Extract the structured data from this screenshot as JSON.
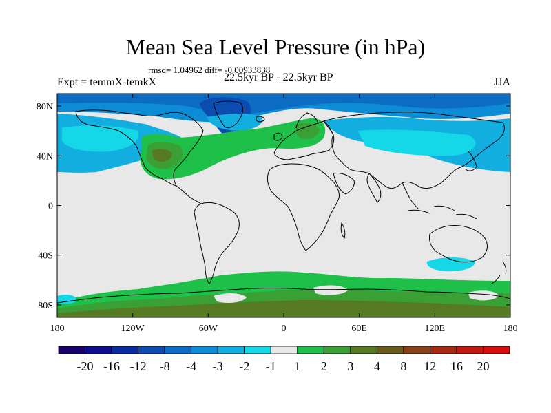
{
  "title": "Mean Sea Level Pressure (in hPa)",
  "stats_text": "rmsd= 1.04962 diff= -0.00933838",
  "expt_label": "Expt = temmX-temkX",
  "period_label": "22.5kyr BP - 22.5kyr BP",
  "season_label": "JJA",
  "axes": {
    "lat_ticks": [
      {
        "label": "80N",
        "value": 80
      },
      {
        "label": "40N",
        "value": 40
      },
      {
        "label": "0",
        "value": 0
      },
      {
        "label": "40S",
        "value": -40
      },
      {
        "label": "80S",
        "value": -80
      }
    ],
    "lon_ticks": [
      {
        "label": "180",
        "value": -180
      },
      {
        "label": "120W",
        "value": -120
      },
      {
        "label": "60W",
        "value": -60
      },
      {
        "label": "0",
        "value": 0
      },
      {
        "label": "60E",
        "value": 60
      },
      {
        "label": "120E",
        "value": 120
      },
      {
        "label": "180",
        "value": 180
      }
    ],
    "lat_range": [
      -90,
      90
    ],
    "lon_range": [
      -180,
      180
    ]
  },
  "colorbar": {
    "colors": [
      "#1a006b",
      "#0c0d8f",
      "#0a2ba0",
      "#0c4cb0",
      "#0c6cc4",
      "#0c8cd4",
      "#13aee0",
      "#14d8e8",
      "#e8e8e8",
      "#1ec04a",
      "#3aa035",
      "#557a22",
      "#6a5a1c",
      "#8a4018",
      "#a52812",
      "#c01810",
      "#d80c0c"
    ],
    "labels": [
      "-20",
      "-16",
      "-12",
      "-8",
      "-4",
      "-3",
      "-2",
      "-1",
      "1",
      "2",
      "3",
      "4",
      "8",
      "12",
      "16",
      "20"
    ]
  },
  "colors": {
    "neutral": "#e8e8e8",
    "light_cyan": "#14d8e8",
    "cyan": "#13aee0",
    "blue": "#0c8cd4",
    "mid_blue": "#0c6cc4",
    "deep_blue": "#0c4cb0",
    "green": "#1ec04a",
    "mid_green": "#3aa035",
    "olive": "#557a22",
    "brown": "#6a5a1c",
    "coast": "#000000"
  }
}
